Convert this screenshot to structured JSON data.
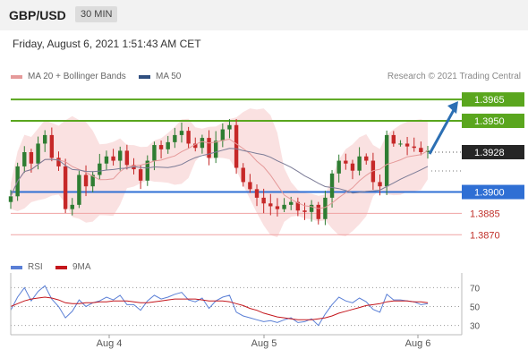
{
  "header": {
    "symbol": "GBP/USD",
    "timeframe": "30 MIN"
  },
  "timestamp": "Friday, August 6, 2021 1:51:43 AM CET",
  "copyright": "Research © 2021 Trading Central",
  "colors": {
    "resistance": "#5aa61e",
    "support": "#2f6fd4",
    "support_weak": "#f0a3a3",
    "last": "#262626",
    "arrow": "#2c6fb3",
    "bollinger": "#f6c9c9",
    "ma20": "#e59a9a",
    "ma50": "#7b7b96",
    "candle_up": "#2e7d32",
    "candle_down": "#c62828",
    "rsi": "#5a7fd6",
    "rsi_ma": "#c4161c"
  },
  "chart_data": [
    {
      "type": "candlestick",
      "legend": [
        {
          "name": "MA 20 + Bollinger Bands",
          "color": "#e59a9a"
        },
        {
          "name": "MA 50",
          "color": "#2f4f7f"
        }
      ],
      "ylim": [
        1.3862,
        1.3972
      ],
      "x_ticks": [
        "Aug 4",
        "Aug 5",
        "Aug 6"
      ],
      "levels": [
        {
          "label": "1.3965",
          "value": 1.3965,
          "kind": "resistance"
        },
        {
          "label": "1.3950",
          "value": 1.395,
          "kind": "resistance"
        },
        {
          "label": "1.3928",
          "value": 1.3928,
          "kind": "last"
        },
        {
          "label": "1.3900",
          "value": 1.39,
          "kind": "support"
        },
        {
          "label": "1.3885",
          "value": 1.3885,
          "kind": "support_weak"
        },
        {
          "label": "1.3870",
          "value": 1.387,
          "kind": "support_weak"
        }
      ],
      "close_path": [
        1.3897,
        1.3918,
        1.3928,
        1.392,
        1.3934,
        1.394,
        1.3924,
        1.3918,
        1.3888,
        1.3891,
        1.3912,
        1.3904,
        1.3912,
        1.392,
        1.3925,
        1.3922,
        1.3929,
        1.3919,
        1.3916,
        1.3908,
        1.3922,
        1.3933,
        1.393,
        1.3935,
        1.394,
        1.3943,
        1.3934,
        1.3931,
        1.3938,
        1.3924,
        1.3936,
        1.3944,
        1.3947,
        1.3917,
        1.3907,
        1.3902,
        1.3896,
        1.3892,
        1.389,
        1.3888,
        1.3891,
        1.3893,
        1.3887,
        1.3886,
        1.3891,
        1.3881,
        1.3896,
        1.3913,
        1.3922,
        1.392,
        1.3915,
        1.3925,
        1.3922,
        1.3907,
        1.3904,
        1.394,
        1.3934,
        1.3934,
        1.3932,
        1.3931,
        1.3928,
        1.3929
      ]
    },
    {
      "type": "line",
      "legend": [
        {
          "name": "RSI",
          "color": "#5a7fd6"
        },
        {
          "name": "9MA",
          "color": "#c4161c"
        }
      ],
      "ylim": [
        22,
        78
      ],
      "y_ticks": [
        70,
        50,
        30
      ],
      "levels": [
        70,
        50,
        30
      ],
      "series": [
        {
          "name": "RSI",
          "values": [
            46,
            60,
            70,
            56,
            66,
            72,
            58,
            50,
            38,
            45,
            57,
            50,
            54,
            56,
            60,
            57,
            62,
            52,
            52,
            46,
            56,
            62,
            58,
            60,
            63,
            65,
            57,
            55,
            59,
            48,
            56,
            60,
            62,
            44,
            40,
            38,
            36,
            34,
            35,
            33,
            36,
            38,
            33,
            34,
            37,
            30,
            42,
            52,
            60,
            56,
            54,
            59,
            55,
            47,
            44,
            63,
            57,
            57,
            56,
            55,
            52,
            53
          ]
        },
        {
          "name": "9MA",
          "values": [
            50,
            53,
            56,
            58,
            59,
            60,
            59,
            57,
            54,
            53,
            53,
            54,
            54,
            55,
            55,
            56,
            56,
            56,
            55,
            54,
            54,
            55,
            56,
            57,
            58,
            58,
            58,
            58,
            57,
            56,
            56,
            56,
            55,
            53,
            51,
            48,
            46,
            43,
            41,
            39,
            38,
            37,
            36,
            36,
            36,
            37,
            38,
            40,
            43,
            45,
            47,
            49,
            51,
            52,
            53,
            55,
            56,
            56,
            56,
            55,
            55,
            54
          ]
        }
      ]
    }
  ]
}
